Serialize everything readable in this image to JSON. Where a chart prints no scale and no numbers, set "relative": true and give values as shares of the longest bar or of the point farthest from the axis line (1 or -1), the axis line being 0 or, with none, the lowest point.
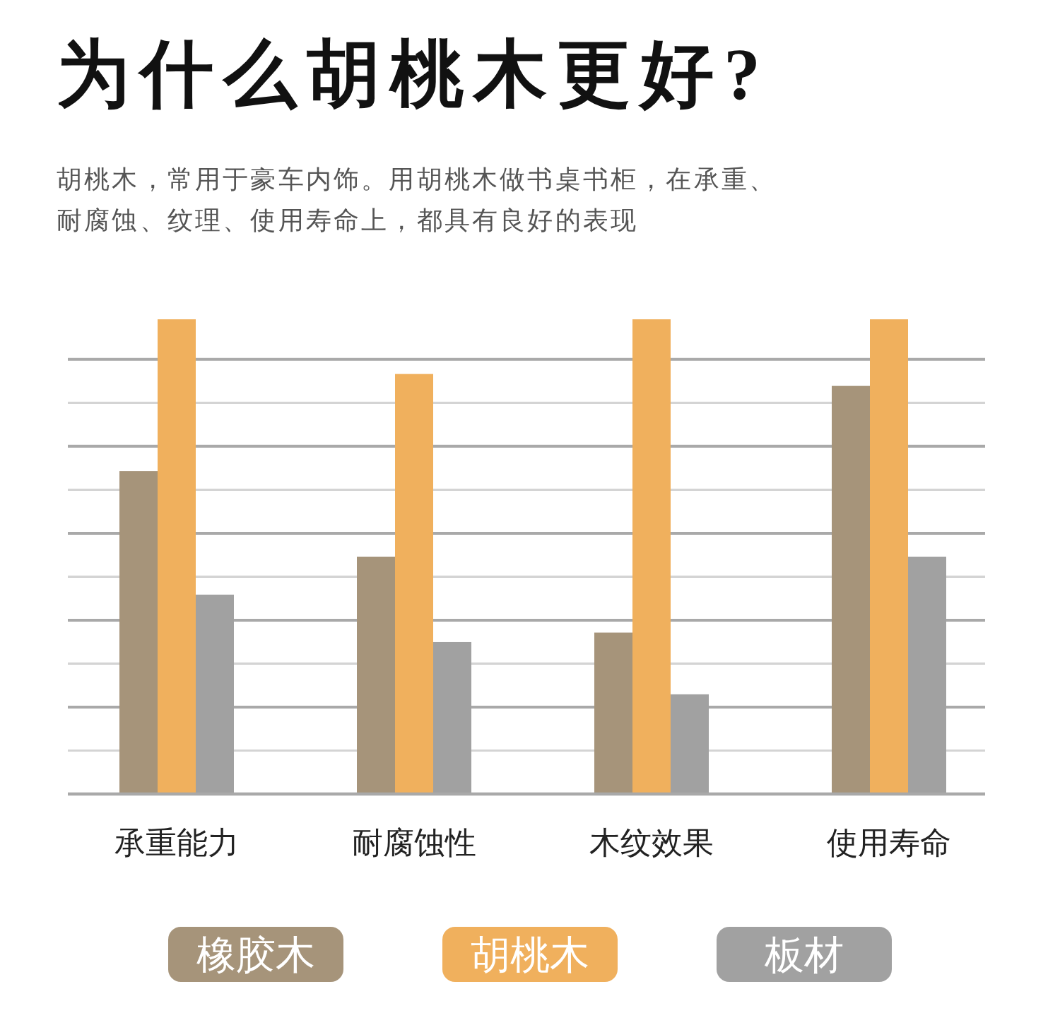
{
  "chart_data": {
    "type": "bar",
    "title": "为什么胡桃木更好?",
    "subtitle": "胡桃木，常用于豪车内饰。用胡桃木做书桌书柜，在承重、耐腐蚀、纹理、使用寿命上，都具有良好的表现",
    "categories": [
      "承重能力",
      "耐腐蚀性",
      "木纹效果",
      "使用寿命"
    ],
    "relative": true,
    "grid": "y",
    "legend": "bottom",
    "series": [
      {
        "name": "橡胶木",
        "color": "#a6947a",
        "values": [
          0.68,
          0.5,
          0.34,
          0.86
        ]
      },
      {
        "name": "胡桃木",
        "color": "#f0b05d",
        "values": [
          1,
          0.885,
          1,
          1
        ]
      },
      {
        "name": "板材",
        "color": "#a1a1a1",
        "values": [
          0.42,
          0.32,
          0.21,
          0.5
        ]
      }
    ]
  }
}
